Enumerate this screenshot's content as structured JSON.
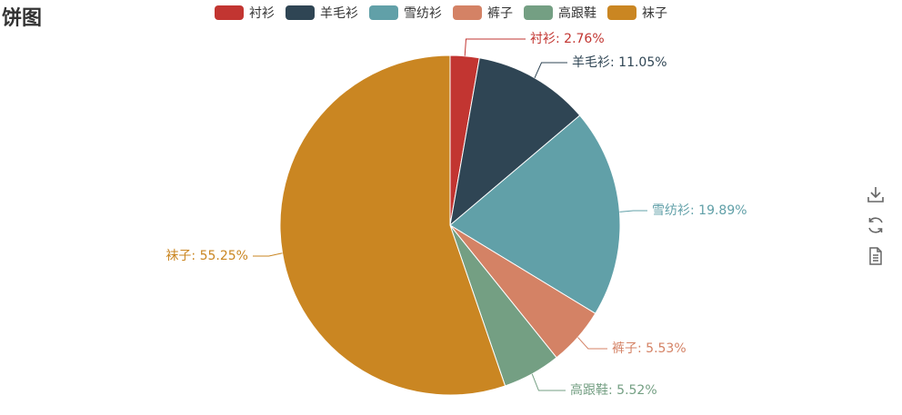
{
  "title": "饼图",
  "toolbox": {
    "items": [
      {
        "name": "save-image",
        "icon": "download-icon"
      },
      {
        "name": "restore",
        "icon": "refresh-icon"
      },
      {
        "name": "data-view",
        "icon": "document-icon"
      }
    ]
  },
  "colors": [
    "#c23531",
    "#2f4554",
    "#61a0a8",
    "#d48265",
    "#749f83",
    "#ca8622"
  ],
  "chart_data": {
    "type": "pie",
    "title": "饼图",
    "categories": [
      "衬衫",
      "羊毛衫",
      "雪纺衫",
      "裤子",
      "高跟鞋",
      "袜子"
    ],
    "values": [
      2.76,
      11.05,
      19.89,
      5.53,
      5.52,
      55.25
    ],
    "labels": [
      "衬衫: 2.76%",
      "羊毛衫: 11.05%",
      "雪纺衫: 19.89%",
      "裤子: 5.53%",
      "高跟鞋: 5.52%",
      "袜子: 55.25%"
    ],
    "legend": {
      "position": "top",
      "entries": [
        "衬衫",
        "羊毛衫",
        "雪纺衫",
        "裤子",
        "高跟鞋",
        "袜子"
      ]
    }
  }
}
